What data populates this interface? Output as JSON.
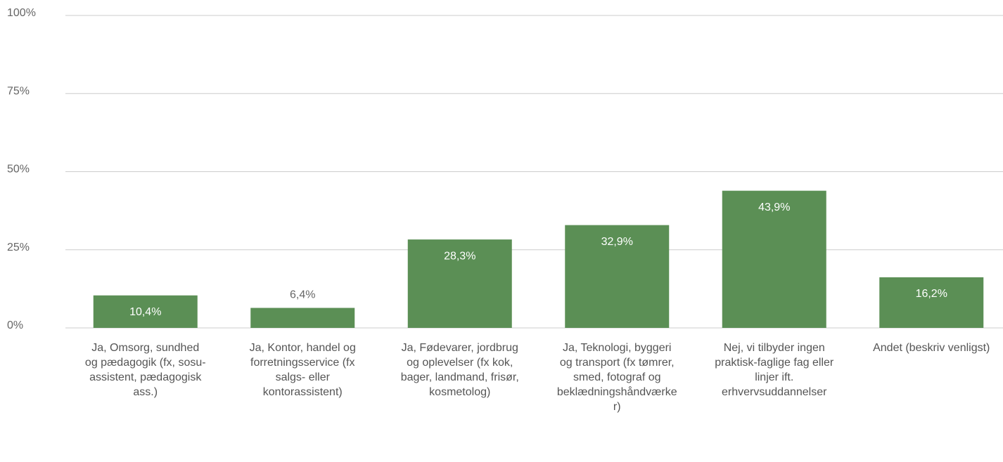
{
  "chart_data": {
    "type": "bar",
    "categories": [
      "Ja, Omsorg, sundhed og pædagogik (fx, sosu-assistent, pædagogisk ass.)",
      "Ja, Kontor, handel og forretningsservice (fx salgs- eller kontorassistent)",
      "Ja, Fødevarer, jordbrug og oplevelser (fx kok, bager, landmand, frisør, kosmetolog)",
      "Ja, Teknologi, byggeri og transport (fx tømrer, smed, fotograf og beklædningshåndværker)",
      "Nej, vi tilbyder ingen praktisk-faglige fag eller linjer ift. erhvervsuddannelser",
      "Andet (beskriv venligst)"
    ],
    "values": [
      10.4,
      6.4,
      28.3,
      32.9,
      43.9,
      16.2
    ],
    "value_labels": [
      "10,4%",
      "6,4%",
      "28,3%",
      "32,9%",
      "43,9%",
      "16,2%"
    ],
    "color": "#5b8f55",
    "ylim": [
      0,
      100
    ],
    "yticks": [
      {
        "value": 0,
        "label": "0%"
      },
      {
        "value": 25,
        "label": "25%"
      },
      {
        "value": 50,
        "label": "50%"
      },
      {
        "value": 75,
        "label": "75%"
      },
      {
        "value": 100,
        "label": "100%"
      }
    ],
    "grid": true
  }
}
